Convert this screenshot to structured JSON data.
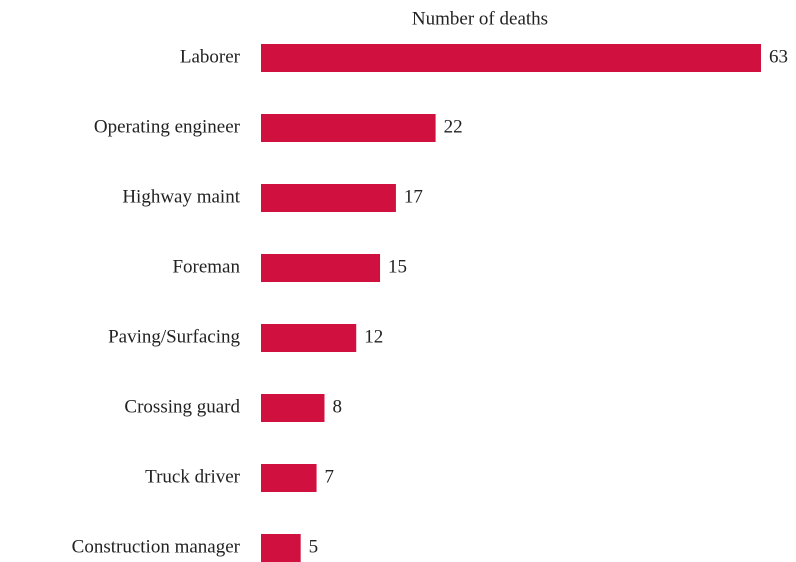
{
  "chart_data": {
    "type": "bar",
    "orientation": "horizontal",
    "title": "Number of deaths",
    "categories": [
      "Laborer",
      "Operating engineer",
      "Highway maint",
      "Foreman",
      "Paving/Surfacing",
      "Crossing guard",
      "Truck driver",
      "Construction manager"
    ],
    "values": [
      63,
      22,
      17,
      15,
      12,
      8,
      7,
      5
    ],
    "color": "#d0113f"
  }
}
